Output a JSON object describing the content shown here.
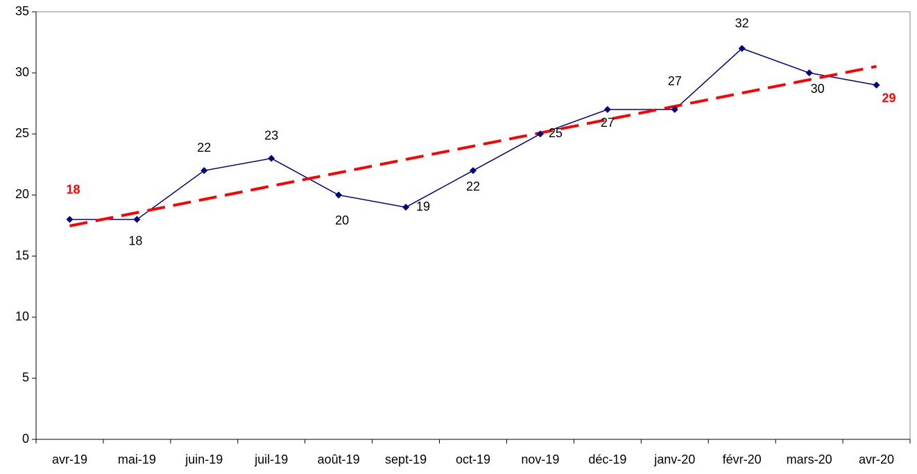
{
  "chart_data": {
    "type": "line",
    "categories": [
      "avr-19",
      "mai-19",
      "juin-19",
      "juil-19",
      "août-19",
      "sept-19",
      "oct-19",
      "nov-19",
      "déc-19",
      "janv-20",
      "févr-20",
      "mars-20",
      "avr-20"
    ],
    "series": [
      {
        "color": "#000080",
        "values": [
          18,
          18,
          22,
          23,
          20,
          19,
          22,
          25,
          27,
          27,
          32,
          30,
          29
        ]
      }
    ],
    "value_label_colors": [
      "#ff0000",
      "#000000",
      "#000000",
      "#000000",
      "#000000",
      "#000000",
      "#000000",
      "#000000",
      "#000000",
      "#000000",
      "#000000",
      "#000000",
      "#ff0000"
    ],
    "trendline": {
      "type": "linear",
      "color": "#ff0000"
    },
    "ylim": [
      0,
      35
    ],
    "yticks": [
      0,
      5,
      10,
      15,
      20,
      25,
      30,
      35
    ]
  }
}
